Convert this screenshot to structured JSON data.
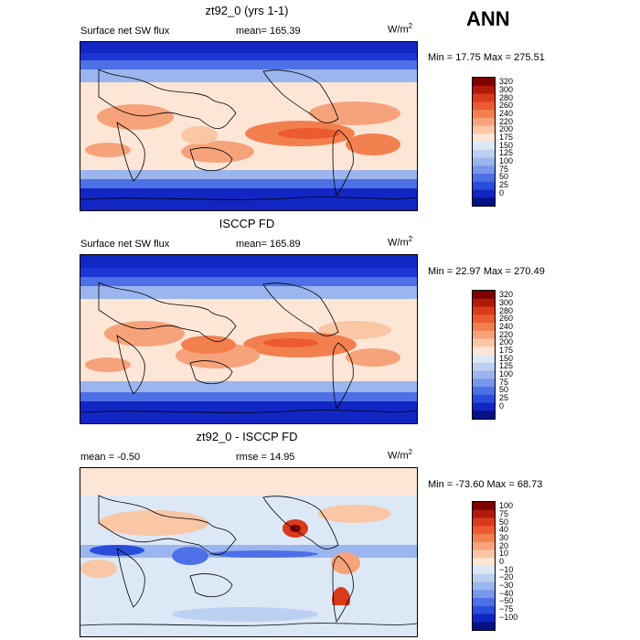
{
  "season": "ANN",
  "units_base": "W/m",
  "units_exp": "2",
  "panels": [
    {
      "title": "zt92_0 (yrs 1-1)",
      "left_label": "Surface net SW flux",
      "right_label": "mean= 165.39",
      "minmax": "Min =  17.75 Max = 275.51",
      "levels": [
        "320",
        "300",
        "280",
        "260",
        "240",
        "220",
        "200",
        "175",
        "150",
        "125",
        "100",
        "75",
        "50",
        "25",
        "0"
      ]
    },
    {
      "title": "ISCCP FD",
      "left_label": "Surface net SW flux",
      "right_label": "mean= 165.89",
      "minmax": "Min =  22.97 Max = 270.49",
      "levels": [
        "320",
        "300",
        "280",
        "260",
        "240",
        "220",
        "200",
        "175",
        "150",
        "125",
        "100",
        "75",
        "50",
        "25",
        "0"
      ]
    },
    {
      "title": "zt92_0 - ISCCP FD",
      "left_label": "mean =  -0.50",
      "right_label": "rmse =  14.95",
      "minmax": "Min = -73.60 Max =  68.73",
      "levels": [
        "100",
        "75",
        "50",
        "40",
        "30",
        "20",
        "10",
        "0",
        "−10",
        "−20",
        "−30",
        "−40",
        "−50",
        "−75",
        "−100"
      ]
    }
  ],
  "colors": {
    "flux_scale": [
      "#7f0000",
      "#b01a0a",
      "#d93a1a",
      "#ec5a30",
      "#f2804f",
      "#f6a37b",
      "#f9c6a6",
      "#fde6d6",
      "#dde8f7",
      "#bcd0f2",
      "#9bb5ee",
      "#7796ec",
      "#4e70e6",
      "#2b4ddc",
      "#1226c4",
      "#061188"
    ],
    "diff_scale": [
      "#7f0000",
      "#b01a0a",
      "#d93a1a",
      "#ec5a30",
      "#f2804f",
      "#f6a37b",
      "#f9c6a6",
      "#fde6d6",
      "#dde8f7",
      "#bcd0f2",
      "#9bb5ee",
      "#7796ec",
      "#4e70e6",
      "#2b4ddc",
      "#1226c4",
      "#061188"
    ]
  }
}
